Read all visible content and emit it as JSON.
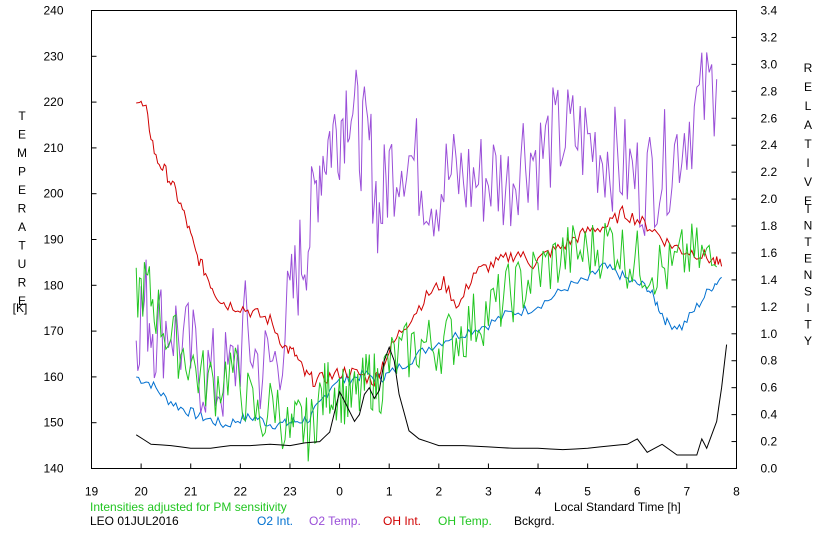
{
  "chart_data": {
    "type": "line",
    "title": "",
    "left_axis": {
      "label_letters": [
        "T",
        "E",
        "M",
        "P",
        "E",
        "R",
        "A",
        "T",
        "U",
        "R",
        "E"
      ],
      "unit": "[K]",
      "range": [
        140,
        240
      ],
      "ticks": [
        140,
        150,
        160,
        170,
        180,
        190,
        200,
        210,
        220,
        230,
        240
      ]
    },
    "right_axis": {
      "label_word1": [
        "R",
        "E",
        "L",
        "A",
        "T",
        "I",
        "V",
        "E"
      ],
      "label_word2": [
        "I",
        "N",
        "T",
        "E",
        "N",
        "S",
        "I",
        "T",
        "Y"
      ],
      "range": [
        0.0,
        3.4
      ],
      "ticks": [
        "0.0",
        "0.2",
        "0.4",
        "0.6",
        "0.8",
        "1.0",
        "1.2",
        "1.4",
        "1.6",
        "1.8",
        "2.0",
        "2.2",
        "2.4",
        "2.6",
        "2.8",
        "3.0",
        "3.2",
        "3.4"
      ]
    },
    "x_axis": {
      "label": "Local Standard Time [h]",
      "range": [
        19,
        32
      ],
      "tick_labels": [
        "19",
        "20",
        "21",
        "22",
        "23",
        "0",
        "1",
        "2",
        "3",
        "4",
        "5",
        "6",
        "7",
        "8"
      ]
    },
    "grid": false,
    "note": "Intensities adjusted for PM sensitivity",
    "station": "LEO 01JUL2016",
    "series": [
      {
        "name": "O2 Int.",
        "color": "#0070d0",
        "axis": "right",
        "x": [
          19.9,
          20.2,
          20.5,
          20.8,
          21.1,
          21.4,
          21.7,
          22.0,
          22.3,
          22.6,
          22.9,
          23.1,
          23.4,
          23.6,
          23.9,
          24.2,
          24.5,
          24.8,
          25.0,
          25.4,
          25.8,
          26.2,
          26.6,
          27.0,
          27.4,
          27.8,
          28.2,
          28.6,
          29.0,
          29.3,
          29.6,
          29.9,
          30.2,
          30.4,
          30.6,
          30.9,
          31.2,
          31.5,
          31.7
        ],
        "values": [
          0.68,
          0.63,
          0.52,
          0.45,
          0.4,
          0.36,
          0.32,
          0.37,
          0.38,
          0.33,
          0.33,
          0.35,
          0.37,
          0.48,
          0.65,
          0.66,
          0.7,
          0.67,
          0.7,
          0.8,
          0.9,
          0.97,
          1.02,
          1.07,
          1.15,
          1.18,
          1.25,
          1.35,
          1.4,
          1.5,
          1.45,
          1.38,
          1.35,
          1.22,
          1.08,
          1.05,
          1.2,
          1.35,
          1.42
        ]
      },
      {
        "name": "O2 Temp.",
        "color": "#9a4fd8",
        "axis": "left",
        "x": [
          19.9,
          20.1,
          20.3,
          20.6,
          20.9,
          21.2,
          21.5,
          21.8,
          22.1,
          22.4,
          22.7,
          23.0,
          23.2,
          23.4,
          23.6,
          23.8,
          24.0,
          24.2,
          24.4,
          24.6,
          24.8,
          25.0,
          25.3,
          25.6,
          25.9,
          26.2,
          26.5,
          26.8,
          27.1,
          27.4,
          27.7,
          28.0,
          28.3,
          28.6,
          28.9,
          29.2,
          29.5,
          29.8,
          30.1,
          30.4,
          30.7,
          31.0,
          31.3,
          31.6
        ],
        "values": [
          172,
          176,
          170,
          172,
          166,
          162,
          159,
          160,
          170,
          162,
          163,
          175,
          185,
          192,
          207,
          212,
          215,
          222,
          213,
          210,
          195,
          205,
          210,
          205,
          200,
          204,
          203,
          203,
          204,
          202,
          210,
          208,
          212,
          213,
          212,
          210,
          208,
          205,
          202,
          205,
          208,
          215,
          220,
          225
        ]
      },
      {
        "name": "OH Int.",
        "color": "#d00000",
        "axis": "right",
        "x": [
          19.9,
          20.1,
          20.3,
          20.5,
          20.7,
          20.9,
          21.1,
          21.3,
          21.5,
          21.7,
          22.0,
          22.3,
          22.6,
          22.9,
          23.1,
          23.3,
          23.5,
          23.8,
          24.1,
          24.4,
          24.7,
          24.9,
          25.2,
          25.5,
          25.8,
          26.1,
          26.4,
          26.7,
          27.0,
          27.3,
          27.6,
          27.9,
          28.2,
          28.5,
          28.8,
          29.1,
          29.4,
          29.7,
          30.0,
          30.3,
          30.6,
          30.9,
          31.2,
          31.5,
          31.7
        ],
        "values": [
          2.75,
          2.65,
          2.3,
          2.2,
          2.05,
          1.85,
          1.6,
          1.45,
          1.3,
          1.22,
          1.2,
          1.15,
          1.1,
          0.9,
          0.85,
          0.7,
          0.65,
          0.68,
          0.72,
          0.7,
          0.65,
          0.8,
          1.0,
          1.15,
          1.3,
          1.38,
          1.2,
          1.45,
          1.5,
          1.55,
          1.6,
          1.52,
          1.6,
          1.65,
          1.72,
          1.78,
          1.8,
          1.9,
          1.85,
          1.78,
          1.68,
          1.62,
          1.6,
          1.55,
          1.5
        ]
      },
      {
        "name": "OH Temp.",
        "color": "#22c622",
        "axis": "left",
        "x": [
          19.9,
          20.1,
          20.3,
          20.6,
          20.9,
          21.2,
          21.5,
          21.8,
          22.1,
          22.4,
          22.7,
          23.0,
          23.2,
          23.4,
          23.6,
          23.8,
          24.0,
          24.2,
          24.4,
          24.6,
          24.8,
          25.0,
          25.3,
          25.6,
          25.9,
          26.2,
          26.5,
          26.8,
          27.1,
          27.4,
          27.7,
          28.0,
          28.3,
          28.6,
          28.9,
          29.2,
          29.5,
          29.8,
          30.1,
          30.4,
          30.7,
          31.0,
          31.3,
          31.6
        ],
        "values": [
          178,
          180,
          175,
          168,
          165,
          160,
          158,
          162,
          156,
          150,
          155,
          147,
          150,
          148,
          155,
          158,
          157,
          155,
          156,
          160,
          158,
          163,
          165,
          167,
          167,
          168,
          170,
          173,
          175,
          178,
          180,
          183,
          185,
          187,
          187,
          188,
          190,
          186,
          185,
          184,
          183,
          187,
          186,
          184
        ]
      },
      {
        "name": "Bckgrd.",
        "color": "#000000",
        "axis": "right",
        "x": [
          19.9,
          20.2,
          20.6,
          21.0,
          21.4,
          21.8,
          22.2,
          22.6,
          23.0,
          23.3,
          23.6,
          23.8,
          24.0,
          24.1,
          24.3,
          24.4,
          24.5,
          24.6,
          24.7,
          24.8,
          24.9,
          25.0,
          25.1,
          25.2,
          25.4,
          25.6,
          26.0,
          26.5,
          27.0,
          27.5,
          28.0,
          28.5,
          29.0,
          29.5,
          29.8,
          30.0,
          30.2,
          30.5,
          30.8,
          31.0,
          31.2,
          31.3,
          31.4,
          31.5,
          31.6,
          31.7,
          31.8
        ],
        "values": [
          0.25,
          0.18,
          0.17,
          0.15,
          0.15,
          0.17,
          0.17,
          0.18,
          0.17,
          0.19,
          0.2,
          0.27,
          0.57,
          0.5,
          0.35,
          0.4,
          0.55,
          0.6,
          0.52,
          0.58,
          0.8,
          0.9,
          0.8,
          0.55,
          0.28,
          0.22,
          0.17,
          0.17,
          0.16,
          0.15,
          0.15,
          0.14,
          0.15,
          0.17,
          0.18,
          0.22,
          0.12,
          0.18,
          0.1,
          0.1,
          0.1,
          0.22,
          0.15,
          0.25,
          0.35,
          0.6,
          0.92
        ]
      }
    ]
  }
}
